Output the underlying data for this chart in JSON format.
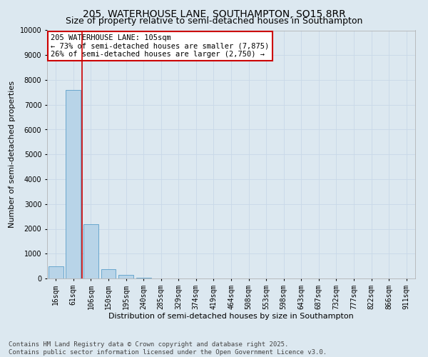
{
  "title": "205, WATERHOUSE LANE, SOUTHAMPTON, SO15 8RR",
  "subtitle": "Size of property relative to semi-detached houses in Southampton",
  "xlabel": "Distribution of semi-detached houses by size in Southampton",
  "ylabel": "Number of semi-detached properties",
  "categories": [
    "16sqm",
    "61sqm",
    "106sqm",
    "150sqm",
    "195sqm",
    "240sqm",
    "285sqm",
    "329sqm",
    "374sqm",
    "419sqm",
    "464sqm",
    "508sqm",
    "553sqm",
    "598sqm",
    "643sqm",
    "687sqm",
    "732sqm",
    "777sqm",
    "822sqm",
    "866sqm",
    "911sqm"
  ],
  "values": [
    480,
    7600,
    2200,
    380,
    130,
    40,
    0,
    0,
    0,
    0,
    0,
    0,
    0,
    0,
    0,
    0,
    0,
    0,
    0,
    0,
    0
  ],
  "bar_color": "#b8d4e8",
  "bar_edge_color": "#5a9ec9",
  "vline_color": "#cc0000",
  "annotation_text": "205 WATERHOUSE LANE: 105sqm\n← 73% of semi-detached houses are smaller (7,875)\n26% of semi-detached houses are larger (2,750) →",
  "annotation_box_facecolor": "#ffffff",
  "annotation_box_edgecolor": "#cc0000",
  "ylim": [
    0,
    10000
  ],
  "yticks": [
    0,
    1000,
    2000,
    3000,
    4000,
    5000,
    6000,
    7000,
    8000,
    9000,
    10000
  ],
  "grid_color": "#c8d8e8",
  "bg_color": "#dce8f0",
  "footer": "Contains HM Land Registry data © Crown copyright and database right 2025.\nContains public sector information licensed under the Open Government Licence v3.0.",
  "title_fontsize": 10,
  "subtitle_fontsize": 9,
  "axis_label_fontsize": 8,
  "tick_fontsize": 7,
  "annotation_fontsize": 7.5,
  "footer_fontsize": 6.5
}
